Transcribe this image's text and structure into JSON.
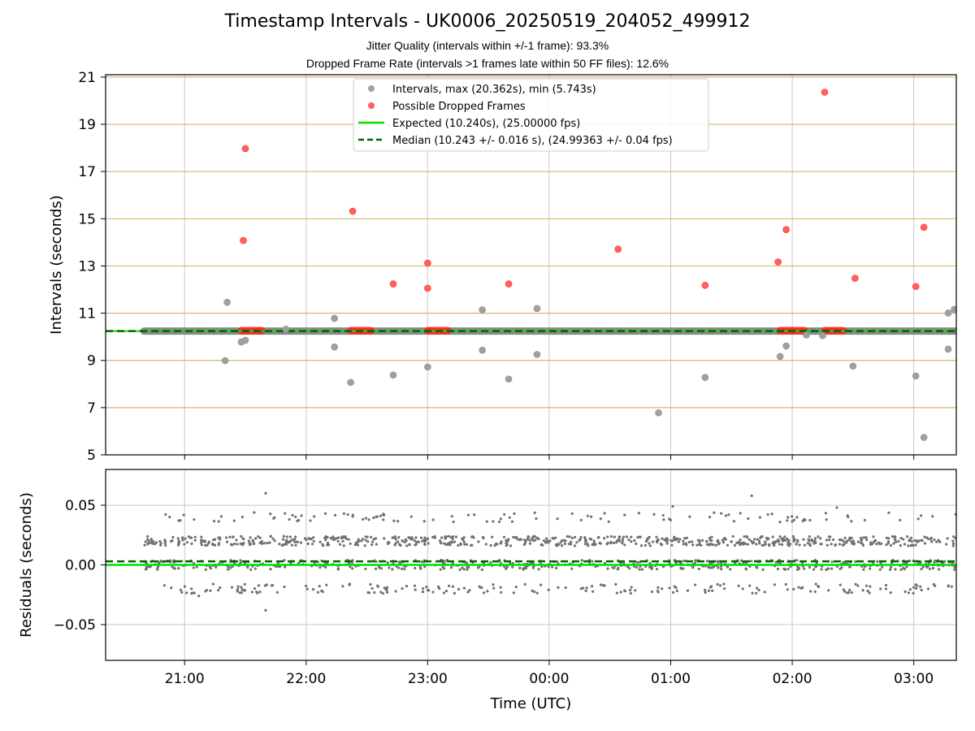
{
  "chart_data": {
    "type": "scatter",
    "title": "Timestamp Intervals - UK0006_20250519_204052_499912",
    "subtitle_lines": [
      "Jitter Quality (intervals within +/-1 frame): 93.3%",
      "Dropped Frame Rate (intervals >1 frames late within 50 FF files): 12.6%"
    ],
    "x_tick_labels": [
      "21:00",
      "22:00",
      "23:00",
      "00:00",
      "01:00",
      "02:00",
      "03:00"
    ],
    "x_ticks_minutes": [
      0,
      60,
      120,
      180,
      240,
      300,
      360
    ],
    "x_label": "Time (UTC)",
    "xlim_minutes": [
      -39,
      381
    ],
    "top_panel": {
      "ylabel": "Intervals (seconds)",
      "ylim": [
        5,
        21.1
      ],
      "y_ticks": [
        5,
        7,
        9,
        11,
        13,
        15,
        17,
        19,
        21
      ],
      "horizontal_reference_lines": [
        7,
        9,
        11,
        13,
        15,
        17,
        19,
        21
      ],
      "legend": [
        {
          "label": "Intervals, max (20.362s), min (5.743s)",
          "kind": "marker",
          "color": "#a0a0a0"
        },
        {
          "label": "Possible Dropped Frames",
          "kind": "marker",
          "color": "#ff6060"
        },
        {
          "label": "Expected (10.240s), (25.00000 fps)",
          "kind": "line",
          "color": "#00e000"
        },
        {
          "label": "Median (10.243 +/- 0.016 s), (24.99363 +/- 0.04 fps)",
          "kind": "dashed",
          "color": "#006400"
        }
      ],
      "expected_interval": 10.24,
      "median_interval": 10.243,
      "interval_band": {
        "x_start": -20,
        "x_end": 381,
        "value": 10.24
      },
      "intervals": [
        {
          "x": 20,
          "y": 8.99
        },
        {
          "x": 21,
          "y": 11.46
        },
        {
          "x": 28,
          "y": 9.78
        },
        {
          "x": 30,
          "y": 9.85
        },
        {
          "x": 50,
          "y": 10.32
        },
        {
          "x": 74,
          "y": 10.78
        },
        {
          "x": 74,
          "y": 9.57
        },
        {
          "x": 82,
          "y": 8.07
        },
        {
          "x": 103,
          "y": 8.38
        },
        {
          "x": 120,
          "y": 8.72
        },
        {
          "x": 147,
          "y": 11.14
        },
        {
          "x": 147,
          "y": 9.43
        },
        {
          "x": 160,
          "y": 8.21
        },
        {
          "x": 174,
          "y": 11.2
        },
        {
          "x": 174,
          "y": 9.25
        },
        {
          "x": 234,
          "y": 6.78
        },
        {
          "x": 257,
          "y": 8.28
        },
        {
          "x": 294,
          "y": 9.17
        },
        {
          "x": 297,
          "y": 9.61
        },
        {
          "x": 307,
          "y": 10.08
        },
        {
          "x": 315,
          "y": 10.05
        },
        {
          "x": 330,
          "y": 8.76
        },
        {
          "x": 361,
          "y": 8.34
        },
        {
          "x": 365,
          "y": 5.74
        },
        {
          "x": 377,
          "y": 11.01
        },
        {
          "x": 377,
          "y": 9.48
        },
        {
          "x": 380,
          "y": 11.16
        }
      ],
      "dropped_frames": [
        {
          "x": 30,
          "y": 17.97
        },
        {
          "x": 29,
          "y": 14.08
        },
        {
          "x": 83,
          "y": 15.32
        },
        {
          "x": 103,
          "y": 12.24
        },
        {
          "x": 120,
          "y": 13.12
        },
        {
          "x": 120,
          "y": 12.06
        },
        {
          "x": 160,
          "y": 12.24
        },
        {
          "x": 214,
          "y": 13.71
        },
        {
          "x": 257,
          "y": 12.18
        },
        {
          "x": 293,
          "y": 13.17
        },
        {
          "x": 297,
          "y": 14.54
        },
        {
          "x": 316,
          "y": 20.36
        },
        {
          "x": 331,
          "y": 12.48
        },
        {
          "x": 361,
          "y": 12.13
        },
        {
          "x": 365,
          "y": 14.64
        }
      ],
      "dropped_frame_runs": [
        {
          "x_start": 28,
          "x_end": 38,
          "y": 10.26
        },
        {
          "x_start": 82,
          "x_end": 92,
          "y": 10.26
        },
        {
          "x_start": 120,
          "x_end": 130,
          "y": 10.26
        },
        {
          "x_start": 294,
          "x_end": 306,
          "y": 10.26
        },
        {
          "x_start": 316,
          "x_end": 325,
          "y": 10.26
        }
      ]
    },
    "bottom_panel": {
      "ylabel": "Residuals (seconds)",
      "ylim": [
        -0.08,
        0.08
      ],
      "y_ticks": [
        -0.05,
        0.0,
        0.05
      ],
      "y_tick_labels": [
        "−0.05",
        "0.00",
        "0.05"
      ],
      "expected_residual": 0.0,
      "median_residual": 0.003,
      "residual_x_range": [
        -20,
        381
      ],
      "residual_levels": [
        0.02,
        0.0,
        -0.02,
        0.04
      ],
      "outliers": [
        {
          "x": 40,
          "y": 0.06
        },
        {
          "x": 40,
          "y": -0.038
        },
        {
          "x": 322,
          "y": 0.048
        },
        {
          "x": 241,
          "y": 0.049
        },
        {
          "x": 280,
          "y": 0.058
        },
        {
          "x": 7,
          "y": -0.026
        },
        {
          "x": 100,
          "y": -0.023
        }
      ]
    }
  }
}
